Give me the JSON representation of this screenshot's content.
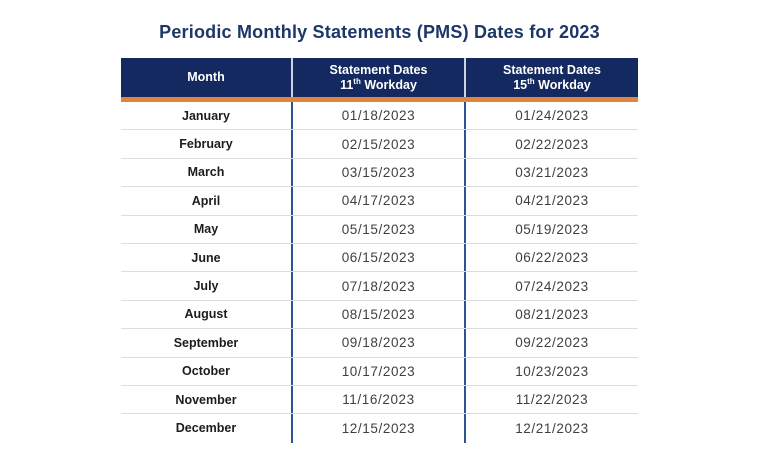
{
  "title": "Periodic Monthly Statements (PMS) Dates for 2023",
  "table": {
    "header": {
      "month": "Month",
      "col11": {
        "line1": "Statement Dates",
        "num": "11",
        "sup": "th",
        "rest": " Workday"
      },
      "col15": {
        "line1": "Statement Dates",
        "num": "15",
        "sup": "th",
        "rest": " Workday"
      }
    },
    "rows": [
      {
        "month": "January",
        "workday11": "01/18/2023",
        "workday15": "01/24/2023"
      },
      {
        "month": "February",
        "workday11": "02/15/2023",
        "workday15": "02/22/2023"
      },
      {
        "month": "March",
        "workday11": "03/15/2023",
        "workday15": "03/21/2023"
      },
      {
        "month": "April",
        "workday11": "04/17/2023",
        "workday15": "04/21/2023"
      },
      {
        "month": "May",
        "workday11": "05/15/2023",
        "workday15": "05/19/2023"
      },
      {
        "month": "June",
        "workday11": "06/15/2023",
        "workday15": "06/22/2023"
      },
      {
        "month": "July",
        "workday11": "07/18/2023",
        "workday15": "07/24/2023"
      },
      {
        "month": "August",
        "workday11": "08/15/2023",
        "workday15": "08/21/2023"
      },
      {
        "month": "September",
        "workday11": "09/18/2023",
        "workday15": "09/22/2023"
      },
      {
        "month": "October",
        "workday11": "10/17/2023",
        "workday15": "10/23/2023"
      },
      {
        "month": "November",
        "workday11": "11/16/2023",
        "workday15": "11/22/2023"
      },
      {
        "month": "December",
        "workday11": "12/15/2023",
        "workday15": "12/21/2023"
      }
    ]
  },
  "colors": {
    "header_background": "#14295F",
    "header_text": "#FFFFFF",
    "title_text": "#1C3768",
    "accent_bar": "#E0853A",
    "header_column_divider": "#CCD4E3",
    "body_column_divider": "#2E5395",
    "row_divider": "#DDDDE1",
    "month_text": "#1C1C1C",
    "date_text": "#3F3F3F"
  }
}
